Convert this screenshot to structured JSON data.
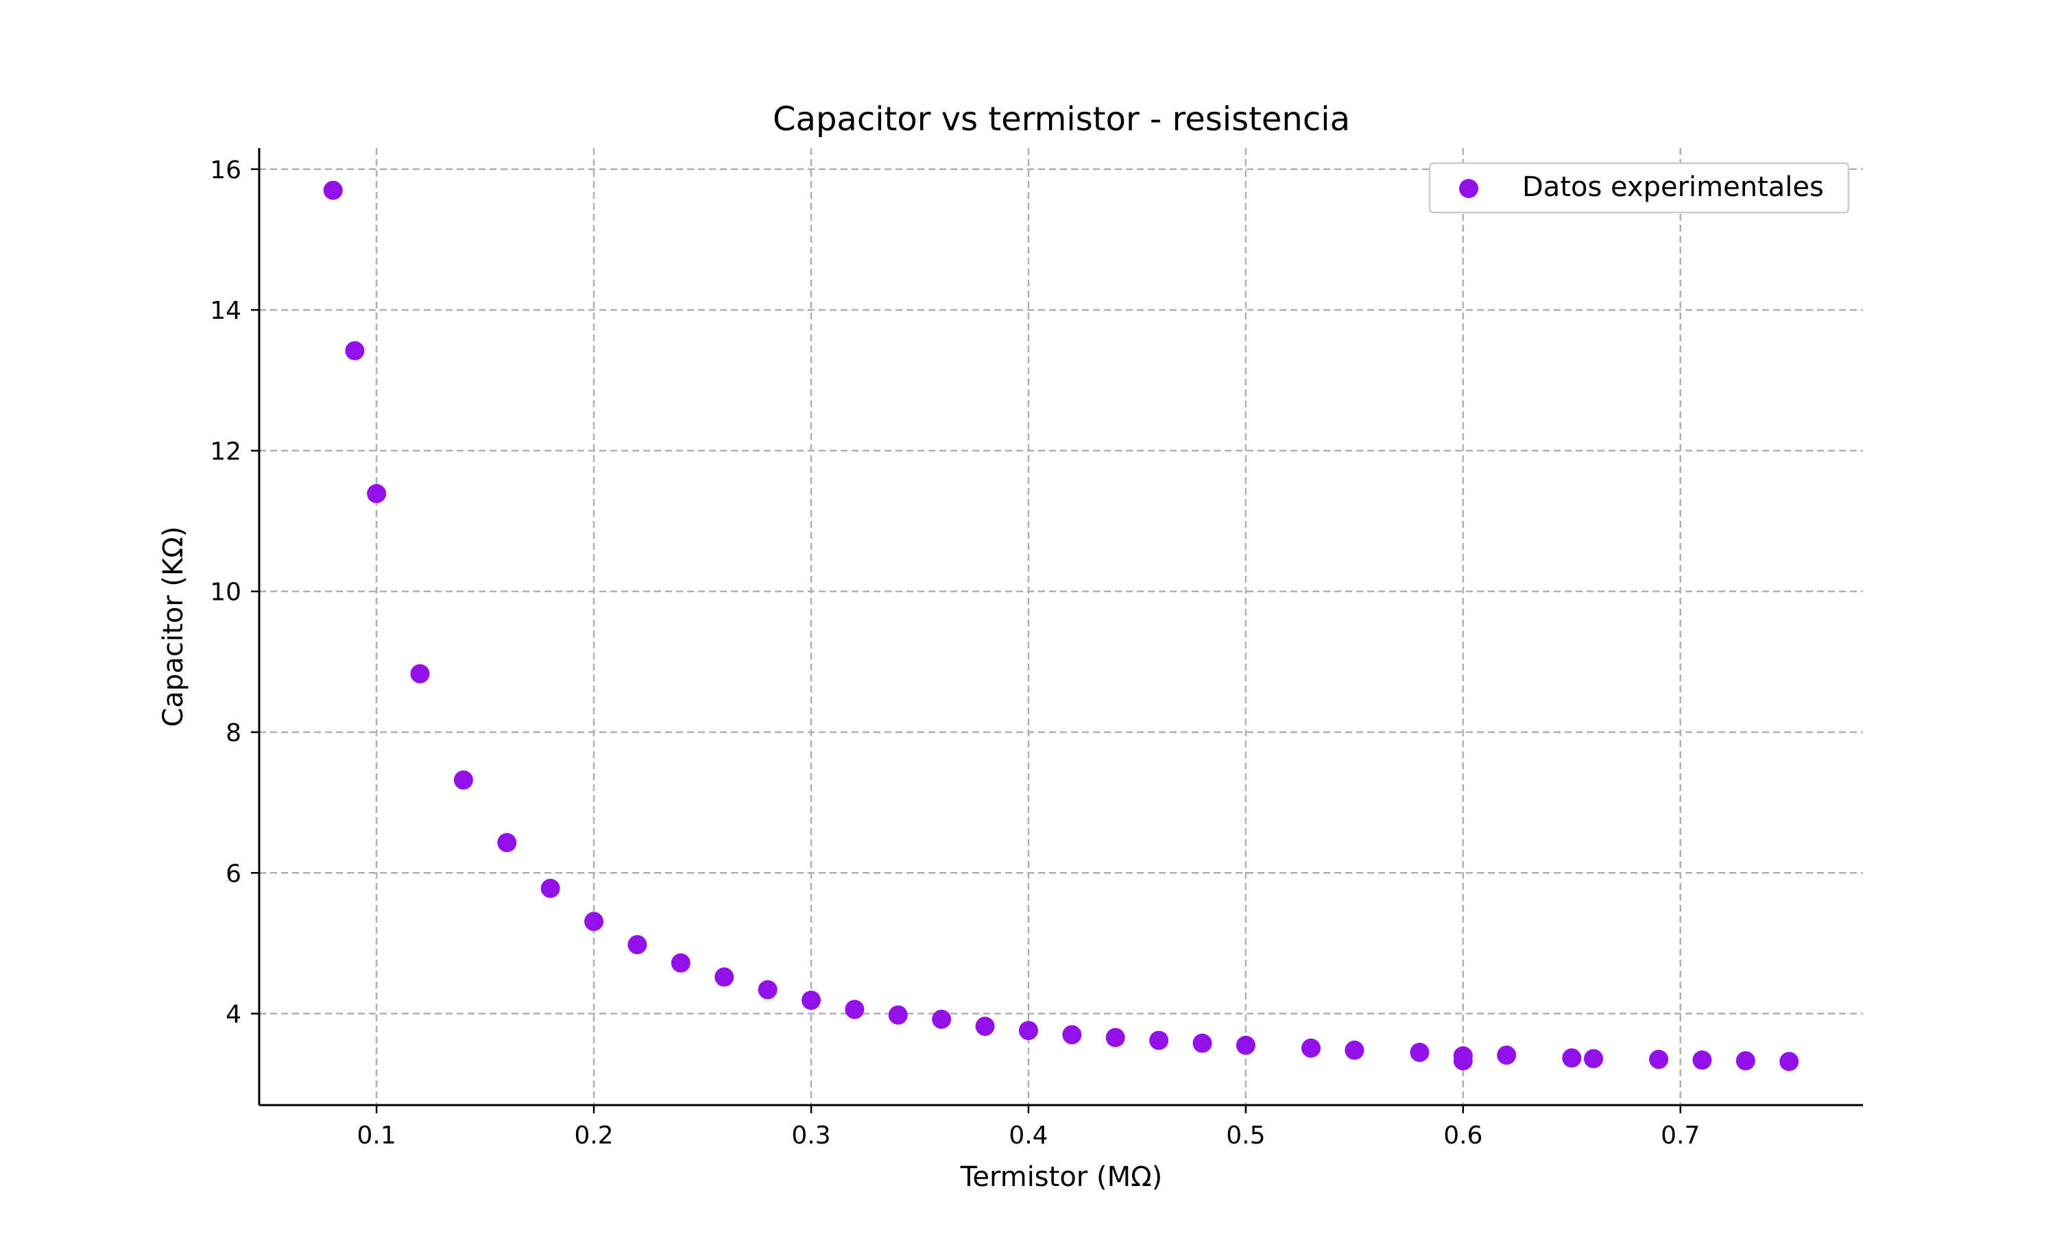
{
  "chart_data": {
    "type": "scatter",
    "title": "Capacitor vs termistor - resistencia",
    "xlabel": "Termistor (MΩ)",
    "ylabel": "Capacitor (KΩ)",
    "xlim": [
      0.046,
      0.784
    ],
    "ylim": [
      2.7,
      16.3
    ],
    "xticks": [
      "0.1",
      "0.2",
      "0.3",
      "0.4",
      "0.5",
      "0.6",
      "0.7"
    ],
    "yticks": [
      "4",
      "6",
      "8",
      "10",
      "12",
      "14",
      "16"
    ],
    "grid": true,
    "legend_position": "top-right",
    "marker_color": "#9410e8",
    "series": [
      {
        "name": "Datos experimentales",
        "x": [
          0.08,
          0.09,
          0.1,
          0.12,
          0.14,
          0.16,
          0.18,
          0.2,
          0.22,
          0.24,
          0.26,
          0.28,
          0.3,
          0.32,
          0.34,
          0.36,
          0.38,
          0.4,
          0.42,
          0.44,
          0.46,
          0.48,
          0.5,
          0.53,
          0.55,
          0.58,
          0.6,
          0.6,
          0.62,
          0.65,
          0.66,
          0.69,
          0.71,
          0.73,
          0.75
        ],
        "y": [
          15.7,
          13.42,
          11.39,
          8.83,
          7.32,
          6.43,
          5.78,
          5.31,
          4.98,
          4.72,
          4.52,
          4.34,
          4.19,
          4.06,
          3.98,
          3.92,
          3.82,
          3.76,
          3.7,
          3.66,
          3.62,
          3.58,
          3.55,
          3.51,
          3.48,
          3.45,
          3.4,
          3.33,
          3.41,
          3.37,
          3.36,
          3.35,
          3.34,
          3.33,
          3.32
        ]
      }
    ]
  }
}
